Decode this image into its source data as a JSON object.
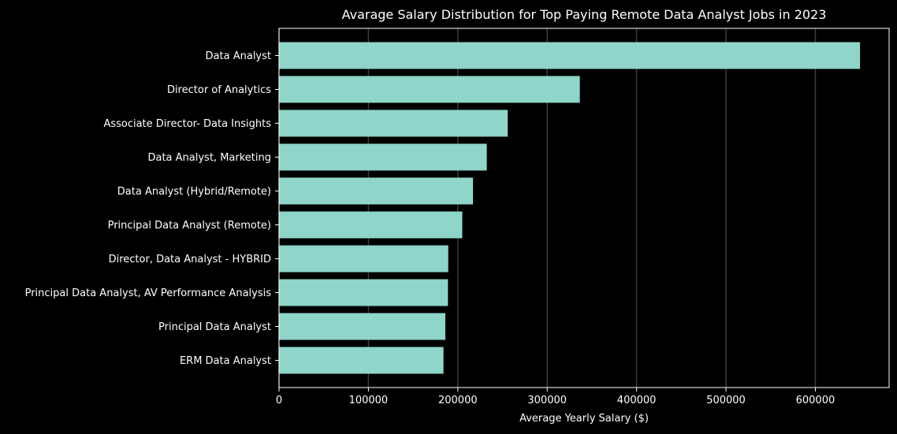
{
  "chart_data": {
    "type": "bar",
    "orientation": "horizontal",
    "title": "Avarage Salary Distribution for Top Paying Remote Data Analyst Jobs in 2023",
    "xlabel": "Average Yearly Salary ($)",
    "ylabel": "",
    "xlim": [
      0,
      682500
    ],
    "x_ticks": [
      0,
      100000,
      200000,
      300000,
      400000,
      500000,
      600000
    ],
    "grid": "vertical",
    "categories": [
      "Data Analyst",
      "Director of Analytics",
      "Associate Director- Data Insights",
      "Data Analyst, Marketing",
      "Data Analyst (Hybrid/Remote)",
      "Principal Data Analyst (Remote)",
      "Director, Data Analyst - HYBRID",
      "Principal Data Analyst, AV Performance Analysis",
      "Principal Data Analyst",
      "ERM Data Analyst"
    ],
    "values": [
      650000,
      336500,
      255829.5,
      232423,
      217000,
      205000,
      189309,
      189000,
      186000,
      184000
    ],
    "colors": {
      "background": "#000000",
      "bar": "#8fd5c9",
      "text": "#ffffff",
      "grid": "#3c3c3c",
      "axis": "#ffffff"
    }
  }
}
